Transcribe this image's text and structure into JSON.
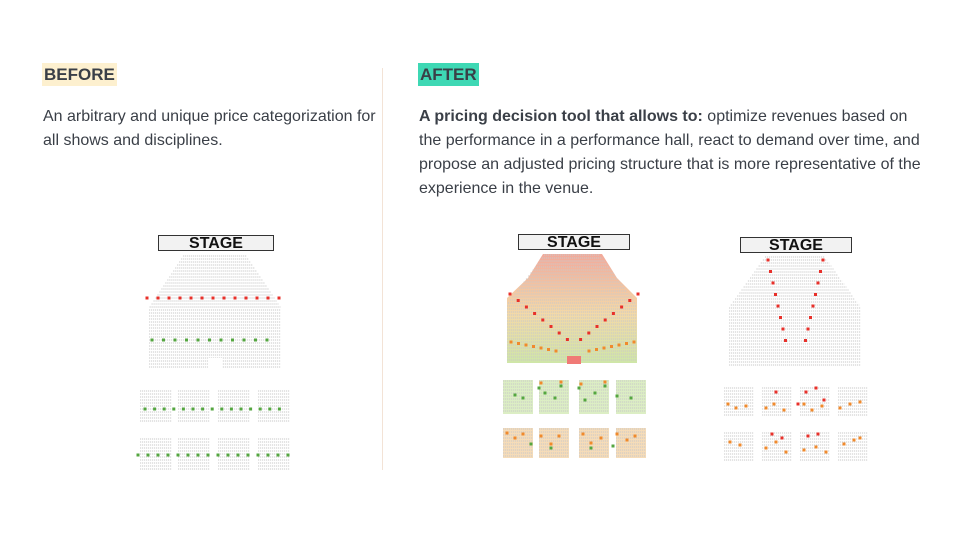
{
  "before": {
    "tag": "BEFORE",
    "tag_color": "#fdf0cf",
    "description": "An arbitrary and unique price categorization for all shows and disciplines."
  },
  "after": {
    "tag": "AFTER",
    "tag_color": "#3ed8b4",
    "description_bold": "A pricing decision tool that allows to:",
    "description_rest": " optimize revenues based on the performance in a performance hall, react to demand over time, and propose an adjusted pricing structure that is more representative of the experience in the venue."
  },
  "maps": {
    "stage_label": "STAGE",
    "colors": {
      "red": "#e8302a",
      "green": "#54a640",
      "orange": "#f08a2c",
      "seat": "#c9c9c9"
    }
  }
}
